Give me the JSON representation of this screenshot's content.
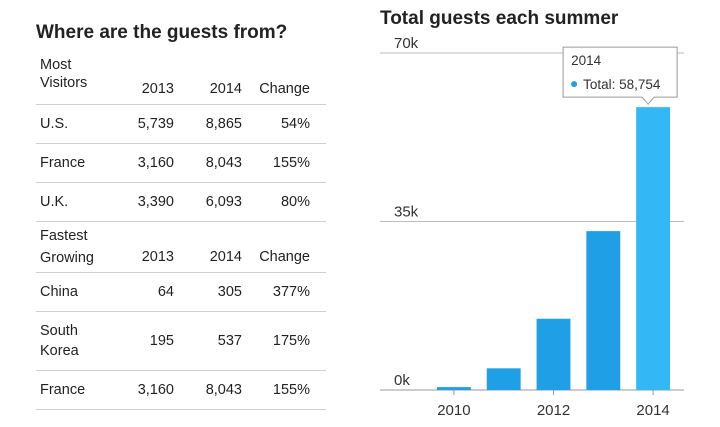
{
  "left_table": {
    "title": "Where are the guests from?",
    "sections": [
      {
        "header": {
          "name_line1": "Most",
          "name_line2": "Visitors",
          "col1": "2013",
          "col2": "2014",
          "col3": "Change"
        },
        "rows": [
          {
            "name": "U.S.",
            "v2013": "5,739",
            "v2014": "8,865",
            "change": "54%"
          },
          {
            "name": "France",
            "v2013": "3,160",
            "v2014": "8,043",
            "change": "155%"
          },
          {
            "name": "U.K.",
            "v2013": "3,390",
            "v2014": "6,093",
            "change": "80%"
          }
        ]
      },
      {
        "header": {
          "name_line1": "Fastest",
          "name_line2": "Growing",
          "col1": "2013",
          "col2": "2014",
          "col3": "Change"
        },
        "rows": [
          {
            "name": "China",
            "v2013": "64",
            "v2014": "305",
            "change": "377%"
          },
          {
            "name_line1": "South",
            "name_line2": "Korea",
            "v2013": "195",
            "v2014": "537",
            "change": "175%"
          },
          {
            "name": "France",
            "v2013": "3,160",
            "v2014": "8,043",
            "change": "155%"
          }
        ]
      }
    ]
  },
  "chart_data": {
    "type": "bar",
    "title": "Total guests each summer",
    "x": [
      2010,
      2011,
      2012,
      2013,
      2014
    ],
    "x_tick_labels": [
      "2010",
      "2012",
      "2014"
    ],
    "series": [
      {
        "values": [
          600,
          4500,
          14800,
          33000,
          58754
        ]
      }
    ],
    "ylim": [
      0,
      70000
    ],
    "y_ticks": [
      {
        "value": 0,
        "label": "0k"
      },
      {
        "value": 35000,
        "label": "35k"
      },
      {
        "value": 70000,
        "label": "70k"
      }
    ],
    "bar_color": "#1fa0e6",
    "highlight_color": "#33b8f5",
    "highlight_index": 4,
    "tooltip": {
      "title": "2014",
      "label": "Total: 58,754",
      "marker_color": "#1fa0e6"
    },
    "grid": true,
    "legend": "none"
  }
}
